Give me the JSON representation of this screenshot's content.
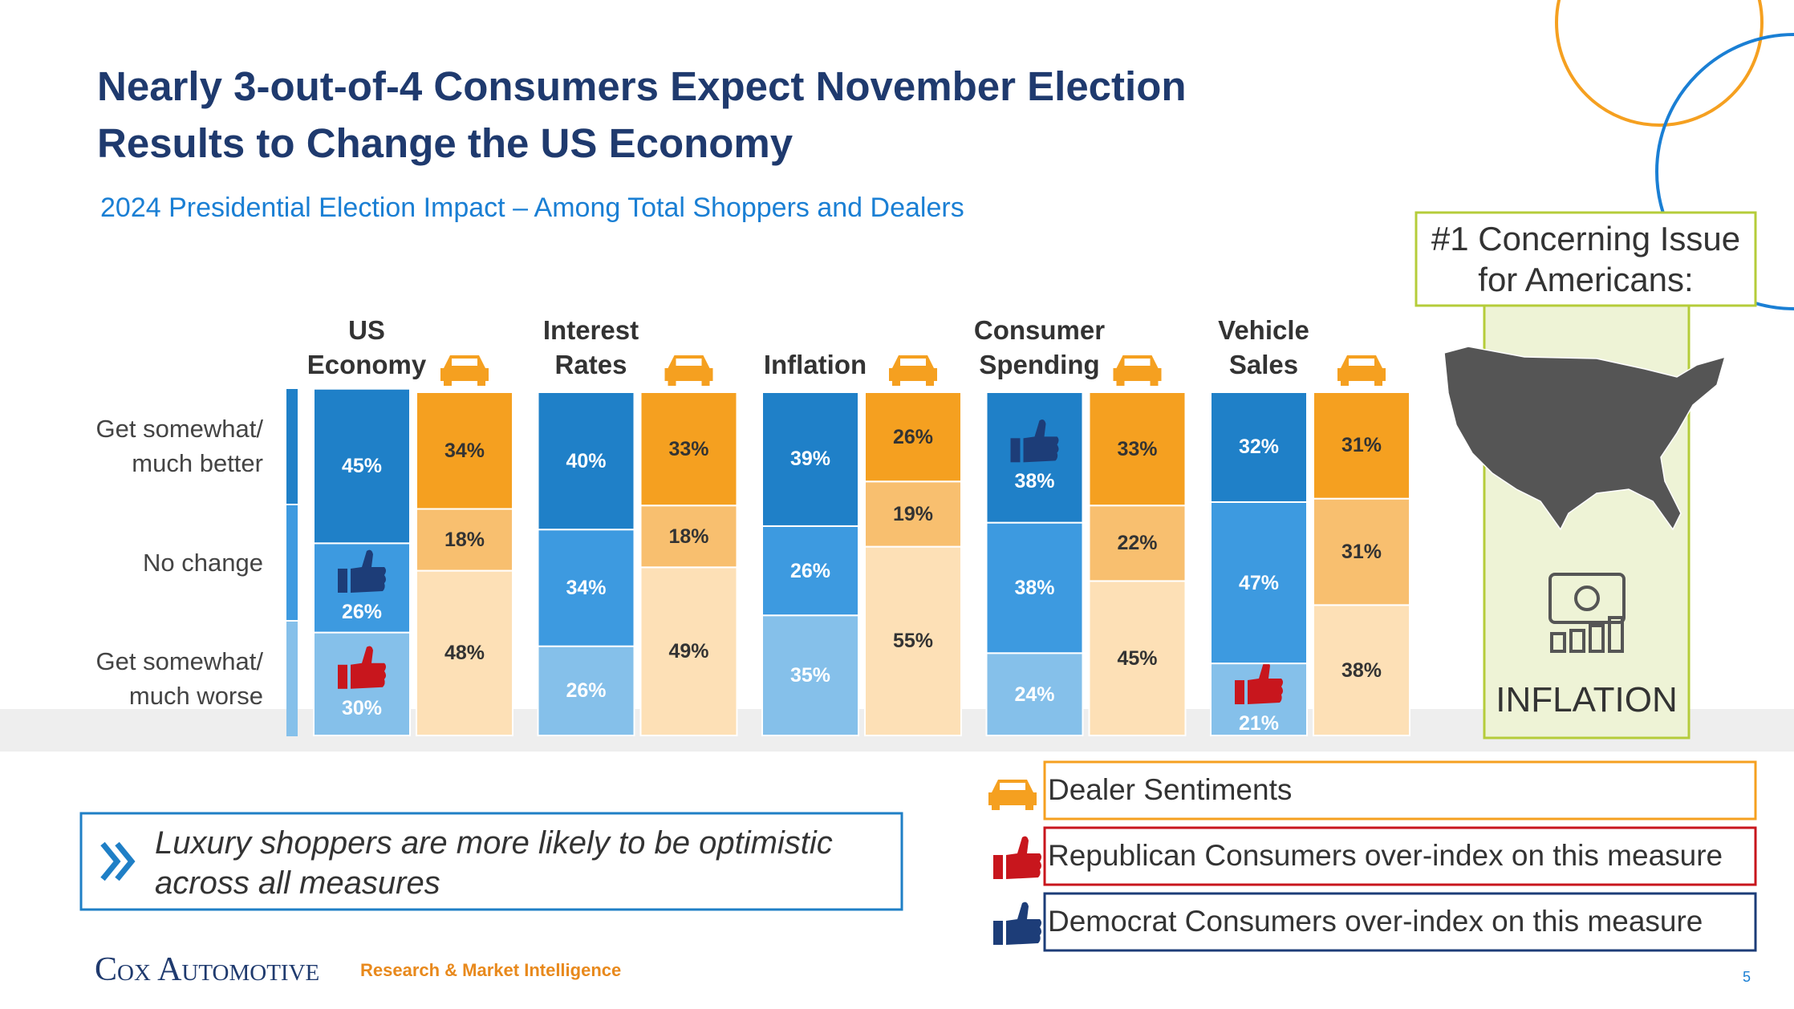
{
  "title": "Nearly 3-out-of-4 Consumers Expect November Election\nResults to Change the US Economy",
  "subtitle": "2024 Presidential Election Impact – Among Total Shoppers and Dealers",
  "chart_data": {
    "type": "stacked-bar",
    "categories": [
      "US\nEconomy",
      "Interest\nRates",
      "Inflation",
      "Consumer\nSpending",
      "Vehicle\nSales"
    ],
    "row_labels": [
      "Get somewhat/\nmuch better",
      "No change",
      "Get somewhat/\nmuch worse"
    ],
    "consumers": [
      {
        "color": "#1f80c8",
        "values": [
          45,
          40,
          39,
          38,
          32
        ],
        "value_labels": [
          "45%",
          "40%",
          "39%",
          "38%",
          "32%"
        ]
      },
      {
        "color": "#3d9ae0",
        "values": [
          26,
          34,
          26,
          38,
          47
        ],
        "value_labels": [
          "26%",
          "34%",
          "26%",
          "38%",
          "47%"
        ]
      },
      {
        "color": "#85c0ea",
        "values": [
          30,
          26,
          35,
          24,
          21
        ],
        "value_labels": [
          "30%",
          "26%",
          "35%",
          "24%",
          "21%"
        ]
      }
    ],
    "dealers": [
      {
        "color": "#f5a020",
        "values": [
          34,
          33,
          26,
          33,
          31
        ],
        "value_labels": [
          "34%",
          "33%",
          "26%",
          "33%",
          "31%"
        ]
      },
      {
        "color": "#f8bf6f",
        "values": [
          18,
          18,
          19,
          22,
          31
        ],
        "value_labels": [
          "18%",
          "18%",
          "19%",
          "22%",
          "31%"
        ]
      },
      {
        "color": "#fde0b6",
        "values": [
          48,
          49,
          55,
          45,
          38
        ],
        "value_labels": [
          "48%",
          "49%",
          "55%",
          "45%",
          "38%"
        ]
      }
    ],
    "legend": [
      {
        "name": "Dealer Sentiments",
        "color": "#f5a020"
      },
      {
        "name": "Republican Consumers over-index on this measure",
        "color": "#c8161d"
      },
      {
        "name": "Democrat Consumers over-index on this measure",
        "color": "#1d3d78"
      }
    ],
    "thumbs": [
      {
        "legend": 2,
        "category": 0,
        "row": 1
      },
      {
        "legend": 1,
        "category": 0,
        "row": 2
      },
      {
        "legend": 2,
        "category": 3,
        "row": 0
      },
      {
        "legend": 1,
        "category": 4,
        "row": 2
      }
    ]
  },
  "sidebar": {
    "heading": "#1 Concerning Issue\nfor Americans:",
    "issue": "INFLATION"
  },
  "callout": "Luxury shoppers are more likely to be optimistic\nacross all measures",
  "footer": {
    "brand": "Cox Automotive",
    "unit": "Research & Market Intelligence",
    "page": "5"
  }
}
